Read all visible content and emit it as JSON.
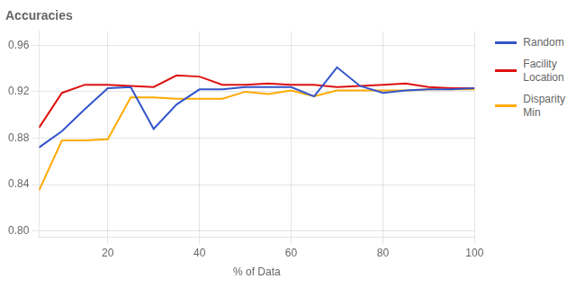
{
  "chart_data": {
    "type": "line",
    "title": "Accuracies",
    "xlabel": "% of Data",
    "x": [
      5,
      10,
      15,
      20,
      25,
      30,
      35,
      40,
      45,
      50,
      55,
      60,
      65,
      70,
      75,
      80,
      85,
      90,
      95,
      100
    ],
    "series": [
      {
        "name": "Random",
        "color": "#3355cc",
        "values": [
          0.872,
          0.886,
          0.905,
          0.923,
          0.924,
          0.888,
          0.909,
          0.922,
          0.922,
          0.924,
          0.924,
          0.924,
          0.916,
          0.941,
          0.925,
          0.919,
          0.921,
          0.922,
          0.922,
          0.923
        ]
      },
      {
        "name": "Facility\nLocation",
        "color": "#dd1111",
        "values": [
          0.889,
          0.919,
          0.926,
          0.926,
          0.925,
          0.924,
          0.934,
          0.933,
          0.926,
          0.926,
          0.927,
          0.926,
          0.926,
          0.924,
          0.925,
          0.926,
          0.927,
          0.924,
          0.923,
          0.923
        ]
      },
      {
        "name": "Disparity\nMin",
        "color": "#ffaa00",
        "values": [
          0.835,
          0.878,
          0.878,
          0.879,
          0.915,
          0.915,
          0.914,
          0.914,
          0.914,
          0.92,
          0.918,
          0.921,
          0.916,
          0.921,
          0.921,
          0.921,
          0.921,
          0.922,
          0.922,
          0.922
        ]
      }
    ],
    "xlim": [
      5,
      100
    ],
    "xticks": [
      20,
      40,
      60,
      80,
      100
    ],
    "ylim": [
      0.795,
      0.972
    ],
    "yticks": [
      {
        "value": 0.8,
        "label": "0.80"
      },
      0.84,
      0.88,
      0.92,
      0.96
    ],
    "grid": true,
    "legend": "right"
  }
}
